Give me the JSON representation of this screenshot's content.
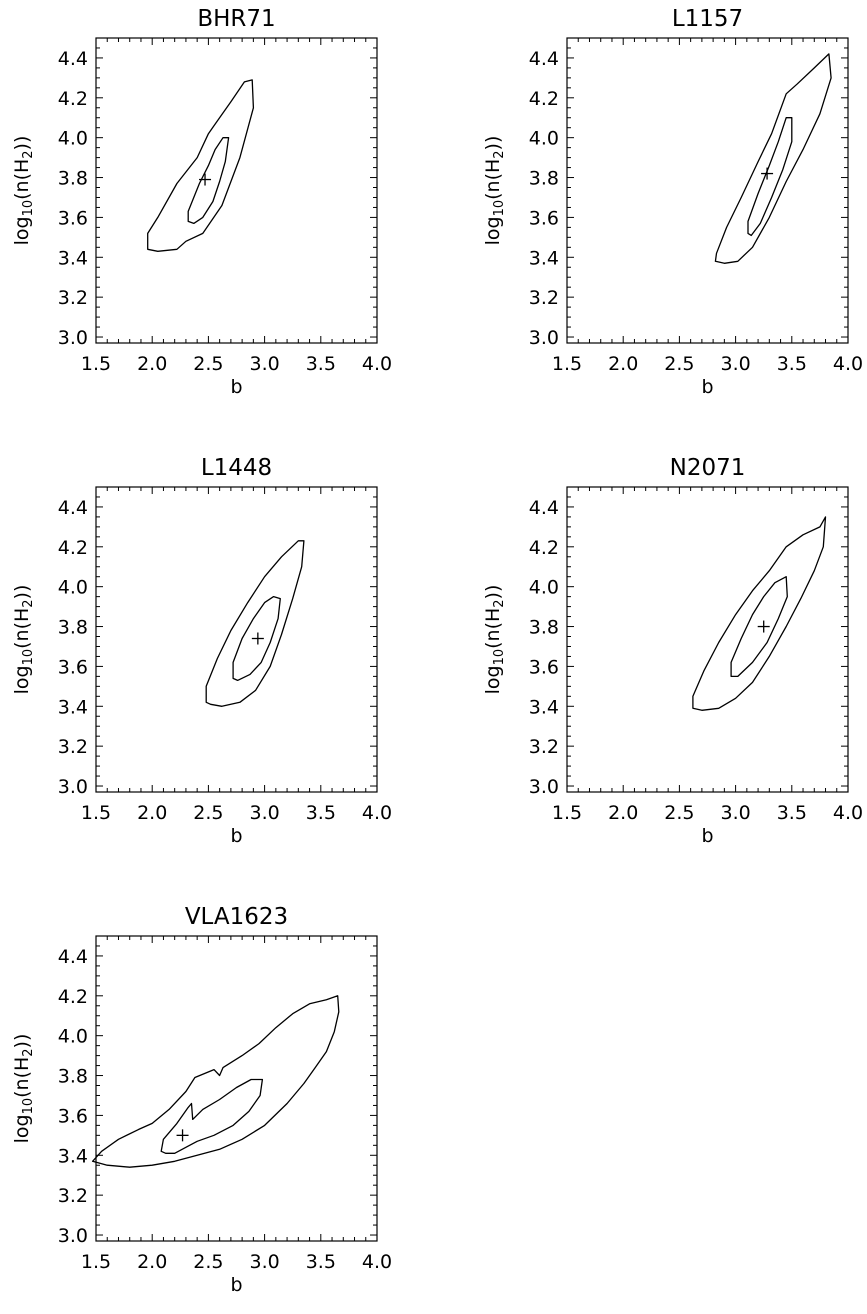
{
  "chart_data": [
    {
      "type": "contour",
      "title": "BHR71",
      "xlabel": "b",
      "ylabel": {
        "prefix": "log",
        "sub": "10",
        "mid": "(n(H",
        "sub2": "2",
        "suffix": "))"
      },
      "xlim": [
        1.5,
        4.0
      ],
      "ylim": [
        2.97,
        4.5
      ],
      "xticks": [
        "1.5",
        "2.0",
        "2.5",
        "3.0",
        "3.5",
        "4.0"
      ],
      "yticks": [
        "3.0",
        "3.2",
        "3.4",
        "3.6",
        "3.8",
        "4.0",
        "4.2",
        "4.4"
      ],
      "best_fit": {
        "b": 2.47,
        "log_n": 3.79
      },
      "contours": [
        {
          "level": "outer",
          "points": [
            [
              1.96,
              3.44
            ],
            [
              1.96,
              3.52
            ],
            [
              2.05,
              3.6
            ],
            [
              2.22,
              3.77
            ],
            [
              2.4,
              3.9
            ],
            [
              2.5,
              4.02
            ],
            [
              2.6,
              4.1
            ],
            [
              2.7,
              4.18
            ],
            [
              2.82,
              4.28
            ],
            [
              2.89,
              4.29
            ],
            [
              2.9,
              4.15
            ],
            [
              2.78,
              3.9
            ],
            [
              2.62,
              3.66
            ],
            [
              2.45,
              3.52
            ],
            [
              2.3,
              3.48
            ],
            [
              2.22,
              3.44
            ],
            [
              2.05,
              3.43
            ],
            [
              1.96,
              3.44
            ]
          ]
        },
        {
          "level": "inner",
          "points": [
            [
              2.32,
              3.58
            ],
            [
              2.32,
              3.63
            ],
            [
              2.42,
              3.77
            ],
            [
              2.5,
              3.86
            ],
            [
              2.56,
              3.94
            ],
            [
              2.63,
              4.0
            ],
            [
              2.68,
              4.0
            ],
            [
              2.65,
              3.88
            ],
            [
              2.6,
              3.78
            ],
            [
              2.54,
              3.68
            ],
            [
              2.45,
              3.6
            ],
            [
              2.37,
              3.57
            ],
            [
              2.32,
              3.58
            ]
          ]
        }
      ]
    },
    {
      "type": "contour",
      "title": "L1157",
      "xlabel": "b",
      "ylabel": {
        "prefix": "log",
        "sub": "10",
        "mid": "(n(H",
        "sub2": "2",
        "suffix": "))"
      },
      "xlim": [
        1.5,
        4.0
      ],
      "ylim": [
        2.97,
        4.5
      ],
      "xticks": [
        "1.5",
        "2.0",
        "2.5",
        "3.0",
        "3.5",
        "4.0"
      ],
      "yticks": [
        "3.0",
        "3.2",
        "3.4",
        "3.6",
        "3.8",
        "4.0",
        "4.2",
        "4.4"
      ],
      "best_fit": {
        "b": 3.28,
        "log_n": 3.82
      },
      "contours": [
        {
          "level": "outer",
          "points": [
            [
              2.82,
              3.38
            ],
            [
              2.83,
              3.42
            ],
            [
              2.92,
              3.55
            ],
            [
              3.05,
              3.7
            ],
            [
              3.2,
              3.88
            ],
            [
              3.32,
              4.02
            ],
            [
              3.45,
              4.22
            ],
            [
              3.55,
              4.27
            ],
            [
              3.7,
              4.35
            ],
            [
              3.83,
              4.42
            ],
            [
              3.85,
              4.3
            ],
            [
              3.75,
              4.12
            ],
            [
              3.6,
              3.94
            ],
            [
              3.45,
              3.78
            ],
            [
              3.3,
              3.6
            ],
            [
              3.15,
              3.45
            ],
            [
              3.02,
              3.38
            ],
            [
              2.9,
              3.37
            ],
            [
              2.82,
              3.38
            ]
          ]
        },
        {
          "level": "inner",
          "points": [
            [
              3.11,
              3.52
            ],
            [
              3.11,
              3.58
            ],
            [
              3.2,
              3.72
            ],
            [
              3.3,
              3.86
            ],
            [
              3.38,
              3.98
            ],
            [
              3.45,
              4.1
            ],
            [
              3.5,
              4.1
            ],
            [
              3.5,
              3.98
            ],
            [
              3.42,
              3.84
            ],
            [
              3.32,
              3.7
            ],
            [
              3.22,
              3.57
            ],
            [
              3.14,
              3.51
            ],
            [
              3.11,
              3.52
            ]
          ]
        }
      ]
    },
    {
      "type": "contour",
      "title": "L1448",
      "xlabel": "b",
      "ylabel": {
        "prefix": "log",
        "sub": "10",
        "mid": "(n(H",
        "sub2": "2",
        "suffix": "))"
      },
      "xlim": [
        1.5,
        4.0
      ],
      "ylim": [
        2.97,
        4.5
      ],
      "xticks": [
        "1.5",
        "2.0",
        "2.5",
        "3.0",
        "3.5",
        "4.0"
      ],
      "yticks": [
        "3.0",
        "3.2",
        "3.4",
        "3.6",
        "3.8",
        "4.0",
        "4.2",
        "4.4"
      ],
      "best_fit": {
        "b": 2.94,
        "log_n": 3.74
      },
      "contours": [
        {
          "level": "outer",
          "points": [
            [
              2.48,
              3.42
            ],
            [
              2.48,
              3.5
            ],
            [
              2.58,
              3.64
            ],
            [
              2.7,
              3.78
            ],
            [
              2.85,
              3.92
            ],
            [
              3.0,
              4.05
            ],
            [
              3.15,
              4.15
            ],
            [
              3.3,
              4.23
            ],
            [
              3.35,
              4.23
            ],
            [
              3.33,
              4.1
            ],
            [
              3.25,
              3.94
            ],
            [
              3.15,
              3.76
            ],
            [
              3.05,
              3.6
            ],
            [
              2.92,
              3.48
            ],
            [
              2.78,
              3.42
            ],
            [
              2.62,
              3.4
            ],
            [
              2.52,
              3.41
            ],
            [
              2.48,
              3.42
            ]
          ]
        },
        {
          "level": "inner",
          "points": [
            [
              2.72,
              3.54
            ],
            [
              2.72,
              3.62
            ],
            [
              2.8,
              3.74
            ],
            [
              2.9,
              3.84
            ],
            [
              3.0,
              3.92
            ],
            [
              3.08,
              3.95
            ],
            [
              3.14,
              3.94
            ],
            [
              3.12,
              3.84
            ],
            [
              3.05,
              3.72
            ],
            [
              2.97,
              3.62
            ],
            [
              2.87,
              3.56
            ],
            [
              2.76,
              3.53
            ],
            [
              2.72,
              3.54
            ]
          ]
        }
      ]
    },
    {
      "type": "contour",
      "title": "N2071",
      "xlabel": "b",
      "ylabel": {
        "prefix": "log",
        "sub": "10",
        "mid": "(n(H",
        "sub2": "2",
        "suffix": "))"
      },
      "xlim": [
        1.5,
        4.0
      ],
      "ylim": [
        2.97,
        4.5
      ],
      "xticks": [
        "1.5",
        "2.0",
        "2.5",
        "3.0",
        "3.5",
        "4.0"
      ],
      "yticks": [
        "3.0",
        "3.2",
        "3.4",
        "3.6",
        "3.8",
        "4.0",
        "4.2",
        "4.4"
      ],
      "best_fit": {
        "b": 3.25,
        "log_n": 3.8
      },
      "contours": [
        {
          "level": "outer",
          "points": [
            [
              2.62,
              3.39
            ],
            [
              2.62,
              3.45
            ],
            [
              2.72,
              3.58
            ],
            [
              2.85,
              3.72
            ],
            [
              3.0,
              3.86
            ],
            [
              3.15,
              3.98
            ],
            [
              3.3,
              4.08
            ],
            [
              3.45,
              4.2
            ],
            [
              3.6,
              4.26
            ],
            [
              3.75,
              4.3
            ],
            [
              3.8,
              4.35
            ],
            [
              3.78,
              4.2
            ],
            [
              3.7,
              4.08
            ],
            [
              3.58,
              3.94
            ],
            [
              3.45,
              3.8
            ],
            [
              3.3,
              3.65
            ],
            [
              3.15,
              3.52
            ],
            [
              3.0,
              3.44
            ],
            [
              2.85,
              3.39
            ],
            [
              2.7,
              3.38
            ],
            [
              2.62,
              3.39
            ]
          ]
        },
        {
          "level": "inner",
          "points": [
            [
              2.96,
              3.55
            ],
            [
              2.96,
              3.62
            ],
            [
              3.05,
              3.74
            ],
            [
              3.15,
              3.86
            ],
            [
              3.25,
              3.95
            ],
            [
              3.35,
              4.02
            ],
            [
              3.45,
              4.05
            ],
            [
              3.46,
              3.95
            ],
            [
              3.38,
              3.84
            ],
            [
              3.28,
              3.72
            ],
            [
              3.15,
              3.62
            ],
            [
              3.02,
              3.55
            ],
            [
              2.96,
              3.55
            ]
          ]
        }
      ]
    },
    {
      "type": "contour",
      "title": "VLA1623",
      "xlabel": "b",
      "ylabel": {
        "prefix": "log",
        "sub": "10",
        "mid": "(n(H",
        "sub2": "2",
        "suffix": "))"
      },
      "xlim": [
        1.5,
        4.0
      ],
      "ylim": [
        2.97,
        4.5
      ],
      "xticks": [
        "1.5",
        "2.0",
        "2.5",
        "3.0",
        "3.5",
        "4.0"
      ],
      "yticks": [
        "3.0",
        "3.2",
        "3.4",
        "3.6",
        "3.8",
        "4.0",
        "4.2",
        "4.4"
      ],
      "best_fit": {
        "b": 2.27,
        "log_n": 3.5
      },
      "contours": [
        {
          "level": "outer",
          "points": [
            [
              1.47,
              3.37
            ],
            [
              1.55,
              3.42
            ],
            [
              1.7,
              3.48
            ],
            [
              1.88,
              3.53
            ],
            [
              2.0,
              3.56
            ],
            [
              2.15,
              3.63
            ],
            [
              2.3,
              3.72
            ],
            [
              2.38,
              3.79
            ],
            [
              2.55,
              3.83
            ],
            [
              2.6,
              3.8
            ],
            [
              2.63,
              3.84
            ],
            [
              2.8,
              3.9
            ],
            [
              2.95,
              3.96
            ],
            [
              3.1,
              4.04
            ],
            [
              3.25,
              4.11
            ],
            [
              3.4,
              4.16
            ],
            [
              3.55,
              4.18
            ],
            [
              3.65,
              4.2
            ],
            [
              3.66,
              4.12
            ],
            [
              3.62,
              4.02
            ],
            [
              3.55,
              3.92
            ],
            [
              3.45,
              3.84
            ],
            [
              3.35,
              3.76
            ],
            [
              3.2,
              3.66
            ],
            [
              3.0,
              3.55
            ],
            [
              2.8,
              3.48
            ],
            [
              2.6,
              3.43
            ],
            [
              2.4,
              3.4
            ],
            [
              2.2,
              3.37
            ],
            [
              2.0,
              3.35
            ],
            [
              1.8,
              3.34
            ],
            [
              1.6,
              3.35
            ],
            [
              1.47,
              3.37
            ]
          ]
        },
        {
          "level": "inner",
          "points": [
            [
              2.08,
              3.42
            ],
            [
              2.1,
              3.48
            ],
            [
              2.22,
              3.56
            ],
            [
              2.32,
              3.64
            ],
            [
              2.35,
              3.66
            ],
            [
              2.36,
              3.58
            ],
            [
              2.45,
              3.63
            ],
            [
              2.6,
              3.68
            ],
            [
              2.75,
              3.74
            ],
            [
              2.88,
              3.78
            ],
            [
              2.98,
              3.78
            ],
            [
              2.96,
              3.7
            ],
            [
              2.86,
              3.62
            ],
            [
              2.72,
              3.55
            ],
            [
              2.55,
              3.5
            ],
            [
              2.4,
              3.47
            ],
            [
              2.3,
              3.44
            ],
            [
              2.2,
              3.41
            ],
            [
              2.12,
              3.41
            ],
            [
              2.08,
              3.42
            ]
          ]
        }
      ]
    }
  ]
}
